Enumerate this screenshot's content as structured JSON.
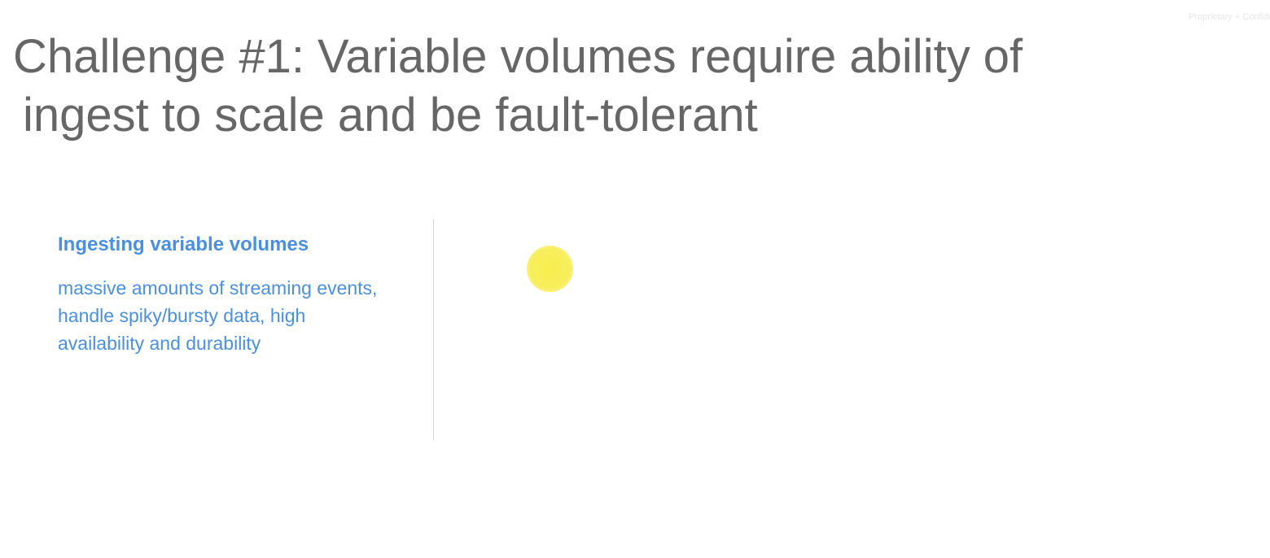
{
  "header": {
    "confidential_label": "Proprietary + Confidential"
  },
  "slide": {
    "title_line1": "Challenge #1: Variable volumes require ability of",
    "title_line2": "ingest to scale and be fault-tolerant"
  },
  "left_panel": {
    "heading": "Ingesting variable volumes",
    "body": "massive amounts of streaming events, handle spiky/bursty data, high availability and durability"
  },
  "colors": {
    "title": "#666666",
    "accent": "#4a8fe0",
    "cursor_highlight": "#f6ec46"
  }
}
